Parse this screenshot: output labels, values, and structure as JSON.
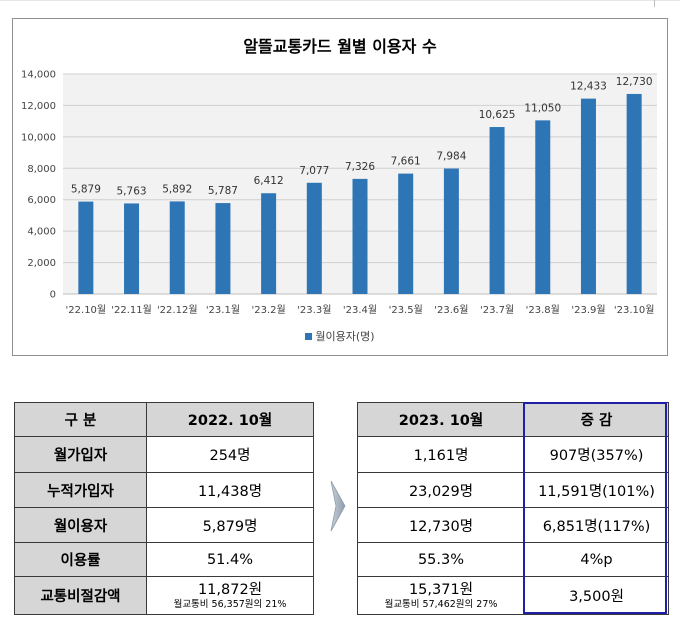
{
  "chart_data": {
    "type": "bar",
    "title": "알뜰교통카드 월별 이용자 수",
    "categories": [
      "'22.10월",
      "'22.11월",
      "'22.12월",
      "'23.1월",
      "'23.2월",
      "'23.3월",
      "'23.4월",
      "'23.5월",
      "'23.6월",
      "'23.7월",
      "'23.8월",
      "'23.9월",
      "'23.10월"
    ],
    "series": [
      {
        "name": "월이용자(명)",
        "values": [
          5879,
          5763,
          5892,
          5787,
          6412,
          7077,
          7326,
          7661,
          7984,
          10625,
          11050,
          12433,
          12730
        ]
      }
    ],
    "data_labels": [
      "5,879",
      "5,763",
      "5,892",
      "5,787",
      "6,412",
      "7,077",
      "7,326",
      "7,661",
      "7,984",
      "10,625",
      "11,050",
      "12,433",
      "12,730"
    ],
    "ylim": [
      0,
      14000
    ],
    "yticks": [
      0,
      2000,
      4000,
      6000,
      8000,
      10000,
      12000,
      14000
    ],
    "ytick_labels": [
      "0",
      "2,000",
      "4,000",
      "6,000",
      "8,000",
      "10,000",
      "12,000",
      "14,000"
    ],
    "grid": true,
    "legend_position": "bottom",
    "bar_color": "#2e75b6",
    "plot_background": "#f2f2f2"
  },
  "left_table": {
    "header": [
      "구 분",
      "2022. 10월"
    ],
    "rows": [
      {
        "label": "월가입자",
        "value": "254명",
        "note": ""
      },
      {
        "label": "누적가입자",
        "value": "11,438명",
        "note": ""
      },
      {
        "label": "월이용자",
        "value": "5,879명",
        "note": ""
      },
      {
        "label": "이용률",
        "value": "51.4%",
        "note": ""
      },
      {
        "label": "교통비절감액",
        "value": "11,872원",
        "note": "월교통비  56,357원의 21%"
      }
    ]
  },
  "right_table": {
    "header": [
      "2023. 10월",
      "증 감"
    ],
    "rows": [
      {
        "value": "1,161명",
        "note": "",
        "change": "907명(357%)"
      },
      {
        "value": "23,029명",
        "note": "",
        "change": "11,591명(101%)"
      },
      {
        "value": "12,730명",
        "note": "",
        "change": "6,851명(117%)"
      },
      {
        "value": "55.3%",
        "note": "",
        "change": "4%p"
      },
      {
        "value": "15,371원",
        "note": "월교통비  57,462원의 27%",
        "change": "3,500원"
      }
    ]
  },
  "colors": {
    "header_fill": "#d6d6d6",
    "highlight_border": "#1f1fa8",
    "arrow": "#9aa7b4"
  },
  "icons": {
    "arrow": "right-arrow-icon"
  }
}
